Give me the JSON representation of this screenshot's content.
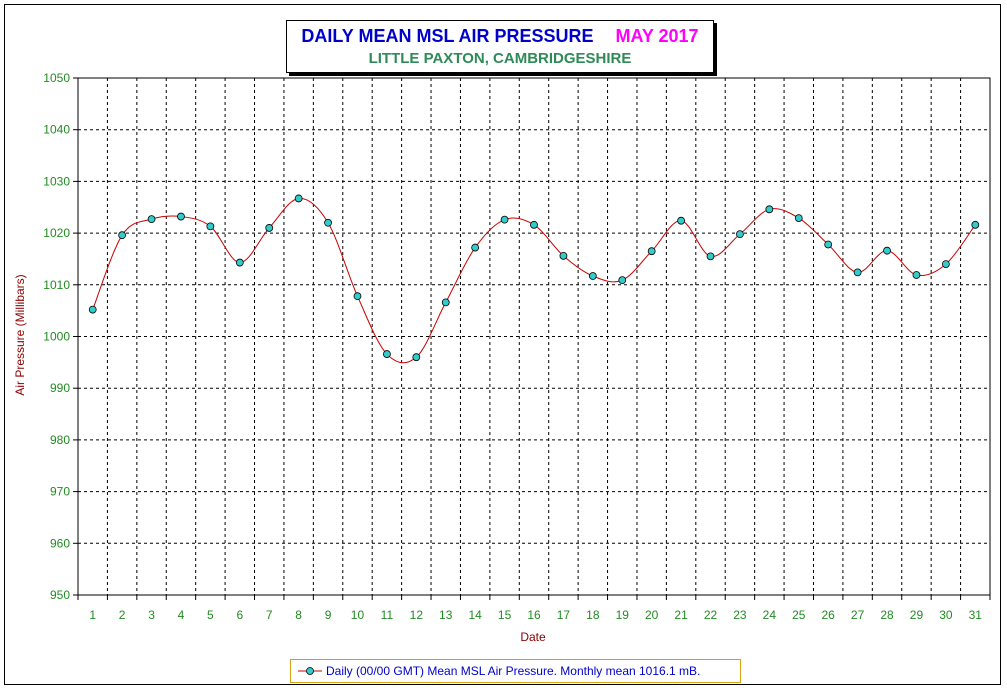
{
  "title": {
    "main": "DAILY MEAN MSL AIR PRESSURE",
    "month": "MAY 2017",
    "subtitle": "LITTLE PAXTON, CAMBRIDGESHIRE"
  },
  "colors": {
    "title_main": "#0000cc",
    "title_month": "#ff00ff",
    "subtitle": "#2e8b57",
    "axis_label": "#8b0000",
    "tick_label": "#228b22",
    "line": "#cc0000",
    "marker_fill": "#33cccc",
    "legend_text": "#0000cc",
    "legend_border": "#d4a017"
  },
  "chart_data": {
    "type": "line",
    "xlabel": "Date",
    "ylabel": "Air Pressure (Millibars)",
    "ylim": [
      950,
      1050
    ],
    "yticks": [
      950,
      960,
      970,
      980,
      990,
      1000,
      1010,
      1020,
      1030,
      1040,
      1050
    ],
    "x": [
      1,
      2,
      3,
      4,
      5,
      6,
      7,
      8,
      9,
      10,
      11,
      12,
      13,
      14,
      15,
      16,
      17,
      18,
      19,
      20,
      21,
      22,
      23,
      24,
      25,
      26,
      27,
      28,
      29,
      30,
      31
    ],
    "grid": true,
    "smoothed": true,
    "series": [
      {
        "name": "Daily (00/00 GMT) Mean MSL Air Pressure. Monthly mean 1016.1 mB.",
        "values": [
          1005.2,
          1019.6,
          1022.7,
          1023.2,
          1021.3,
          1014.3,
          1021.0,
          1026.7,
          1022.0,
          1007.8,
          996.6,
          996.0,
          1006.6,
          1017.2,
          1022.6,
          1021.6,
          1015.6,
          1011.7,
          1010.9,
          1016.5,
          1022.4,
          1015.5,
          1019.8,
          1024.6,
          1022.9,
          1017.8,
          1012.4,
          1016.6,
          1011.9,
          1014.0,
          1021.6
        ]
      }
    ],
    "legend_position": "bottom-center"
  }
}
